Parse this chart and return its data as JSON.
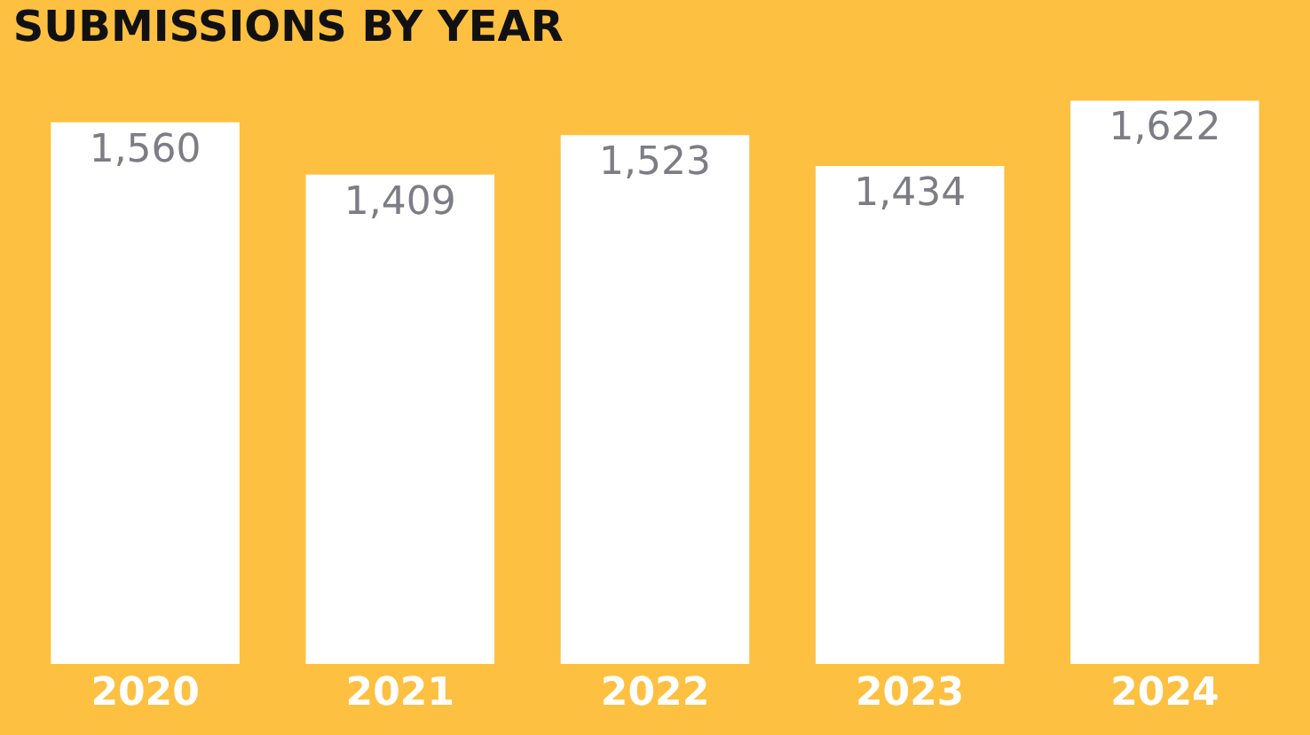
{
  "chart_data": {
    "type": "bar",
    "title": "SUBMISSIONS BY YEAR",
    "categories": [
      "2020",
      "2021",
      "2022",
      "2023",
      "2024"
    ],
    "values": [
      1560,
      1409,
      1523,
      1434,
      1622
    ],
    "value_labels": [
      "1,560",
      "1,409",
      "1,523",
      "1,434",
      "1,622"
    ],
    "color": "#ffffff"
  }
}
